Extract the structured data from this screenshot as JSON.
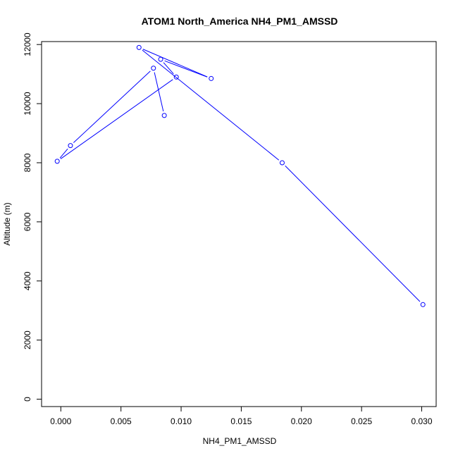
{
  "chart_data": {
    "type": "line",
    "title": "ATOM1 North_America NH4_PM1_AMSSD",
    "xlabel": "NH4_PM1_AMSSD",
    "ylabel": "Altitude (m)",
    "xlim": [
      -0.0016,
      0.0312
    ],
    "ylim": [
      -250,
      12100
    ],
    "xticks": [
      0.0,
      0.005,
      0.01,
      0.015,
      0.02,
      0.025,
      0.03
    ],
    "xtick_labels": [
      "0.000",
      "0.005",
      "0.010",
      "0.015",
      "0.020",
      "0.025",
      "0.030"
    ],
    "yticks": [
      0,
      2000,
      4000,
      6000,
      8000,
      10000,
      12000
    ],
    "ytick_labels": [
      "0",
      "2000",
      "4000",
      "6000",
      "8000",
      "10000",
      "12000"
    ],
    "grid": false,
    "colors": {
      "series": "#0000ff",
      "axis": "#000000",
      "background": "#ffffff"
    },
    "series": [
      {
        "marker": "open-circle",
        "points": [
          {
            "x": 0.0301,
            "y": 3200
          },
          {
            "x": 0.0184,
            "y": 8000
          },
          {
            "x": 0.0065,
            "y": 11900
          },
          {
            "x": 0.0125,
            "y": 10850
          },
          {
            "x": 0.0083,
            "y": 11500
          },
          {
            "x": 0.0096,
            "y": 10900
          },
          {
            "x": -0.0003,
            "y": 8050
          },
          {
            "x": 0.0008,
            "y": 8580
          },
          {
            "x": 0.0077,
            "y": 11200
          },
          {
            "x": 0.0086,
            "y": 9600
          }
        ]
      }
    ]
  }
}
